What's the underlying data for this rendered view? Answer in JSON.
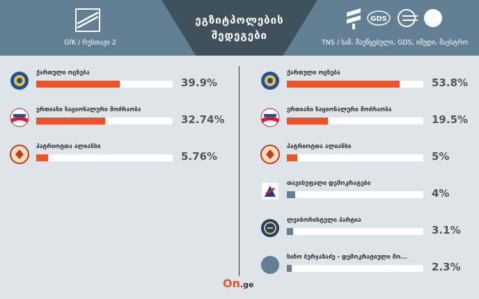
{
  "header": {
    "title_line1": "ეგზიტპოლების",
    "title_line2": "შედეგები",
    "left_source": "GfK / რუსთავი 2",
    "right_source": "TNS / საზ. მაუწყებელი, GDS, იმედი, მაესტრო"
  },
  "colors": {
    "bar_main": "#ee5328",
    "bar_small": "#627f93",
    "header": "#627f93",
    "header_dark": "#3f515d"
  },
  "left_results": [
    {
      "name": "ქართული ოცნება",
      "value_text": "39.9%",
      "value": 39.9,
      "icon": "georgian-dream-icon"
    },
    {
      "name": "ერთიანი ნაციონალური მოძრაობა",
      "value_text": "32.74%",
      "value": 32.74,
      "icon": "unm-icon"
    },
    {
      "name": "პატრიოტთა ალიანსი",
      "value_text": "5.76%",
      "value": 5.76,
      "icon": "patriots-icon"
    }
  ],
  "right_results": [
    {
      "name": "ქართული ოცნება",
      "value_text": "53.8%",
      "value": 53.8,
      "icon": "georgian-dream-icon"
    },
    {
      "name": "ერთიანი ნაციონალური მოძრაობა",
      "value_text": "19.5%",
      "value": 19.5,
      "icon": "unm-icon"
    },
    {
      "name": "პატრიოტთა ალიანსი",
      "value_text": "5%",
      "value": 5,
      "icon": "patriots-icon"
    },
    {
      "name": "თავისუფალი დემოკრატები",
      "value_text": "4%",
      "value": 4,
      "icon": "free-democrats-icon"
    },
    {
      "name": "ლეიბორისტული პარტია",
      "value_text": "3.1%",
      "value": 3.1,
      "icon": "labour-icon"
    },
    {
      "name": "ნინო ბურჯანაძე - დემოკრატიული მო...",
      "value_text": "2.3%",
      "value": 2.3,
      "icon": "burjanadze-icon"
    }
  ],
  "footer": {
    "brand": "On",
    "brand_suffix": ".ge"
  }
}
